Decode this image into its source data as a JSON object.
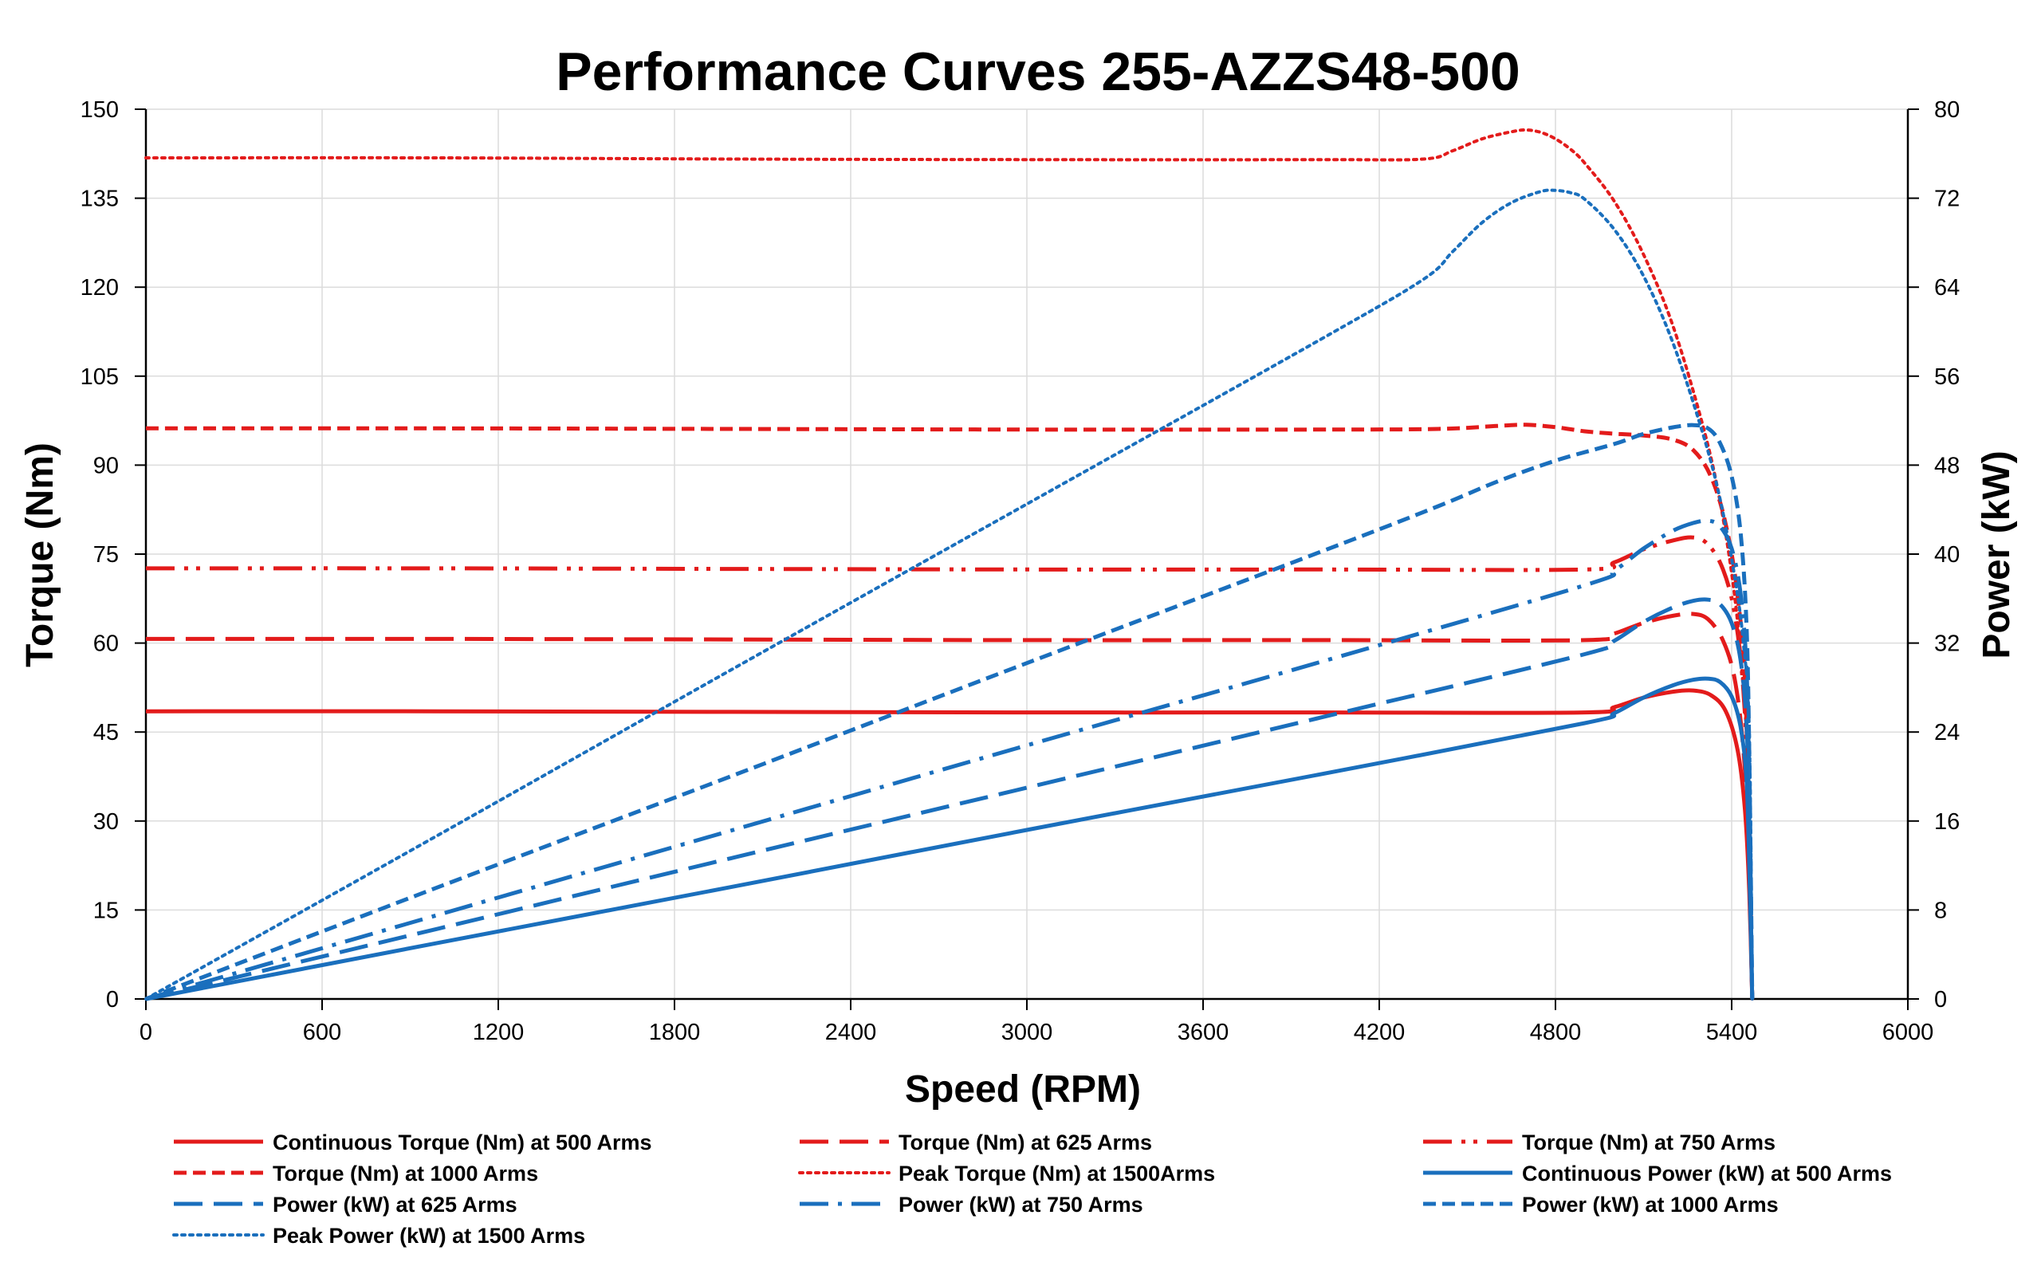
{
  "chart_data": {
    "type": "line",
    "title": "Performance Curves 255-AZZS48-500",
    "xlabel": "Speed (RPM)",
    "ylabel": "Torque (Nm)",
    "y2label": "Power (kW)",
    "xlim": [
      0,
      6000
    ],
    "ylim": [
      0,
      150
    ],
    "y2lim": [
      0,
      80
    ],
    "x_ticks": [
      "0",
      "600",
      "1200",
      "1800",
      "2400",
      "3000",
      "3600",
      "4200",
      "4800",
      "5400",
      "6000"
    ],
    "y_ticks": [
      "0",
      "15",
      "30",
      "45",
      "60",
      "75",
      "90",
      "105",
      "120",
      "135",
      "150"
    ],
    "y2_ticks": [
      "0",
      "8",
      "16",
      "24",
      "32",
      "40",
      "48",
      "56",
      "64",
      "72",
      "80"
    ],
    "grid": true,
    "legend_position": "bottom",
    "series": [
      {
        "name": "Continuous Torque (Nm) at 500 Arms",
        "axis": "left",
        "color": "#e31b1b",
        "dash": "solid",
        "x": [
          0,
          1000,
          2000,
          3000,
          4000,
          4900,
          5000,
          5100,
          5200,
          5270,
          5330,
          5380,
          5420,
          5445,
          5460,
          5470
        ],
        "y": [
          48.5,
          48.5,
          48.4,
          48.3,
          48.3,
          48.3,
          49.2,
          50.8,
          51.8,
          52.0,
          51.2,
          48.5,
          42,
          32,
          18,
          0
        ]
      },
      {
        "name": "Torque (Nm) at 625 Arms",
        "axis": "left",
        "color": "#e31b1b",
        "dash": "longdash",
        "x": [
          0,
          1000,
          2000,
          3000,
          4000,
          4900,
          5000,
          5100,
          5200,
          5270,
          5320,
          5370,
          5410,
          5440,
          5458,
          5470
        ],
        "y": [
          60.7,
          60.7,
          60.6,
          60.5,
          60.5,
          60.5,
          61.6,
          63.4,
          64.6,
          64.9,
          64.0,
          60.5,
          54,
          42,
          25,
          0
        ]
      },
      {
        "name": "Torque (Nm) at 750 Arms",
        "axis": "left",
        "color": "#e31b1b",
        "dash": "dashdotdot",
        "x": [
          0,
          1000,
          2000,
          3000,
          4000,
          4900,
          5000,
          5100,
          5200,
          5270,
          5320,
          5370,
          5410,
          5440,
          5458,
          5470
        ],
        "y": [
          72.6,
          72.6,
          72.5,
          72.4,
          72.4,
          72.4,
          73.6,
          75.8,
          77.3,
          77.8,
          76.6,
          72.5,
          65,
          52,
          32,
          0
        ]
      },
      {
        "name": "Torque (Nm) at 1000 Arms",
        "axis": "left",
        "color": "#e31b1b",
        "dash": "shortdash",
        "x": [
          0,
          1000,
          2000,
          3000,
          4000,
          4400,
          4600,
          4700,
          4800,
          4900,
          5000,
          5100,
          5200,
          5270,
          5330,
          5380,
          5420,
          5448,
          5470
        ],
        "y": [
          96.2,
          96.2,
          96.1,
          96.0,
          96.0,
          96.1,
          96.6,
          96.8,
          96.4,
          95.7,
          95.3,
          95.0,
          94.3,
          92.5,
          88,
          80,
          68,
          50,
          0
        ]
      },
      {
        "name": "Peak Torque (Nm) at 1500Arms",
        "axis": "left",
        "color": "#e31b1b",
        "dash": "dotted",
        "x": [
          0,
          1000,
          2000,
          3000,
          4000,
          4350,
          4450,
          4550,
          4650,
          4700,
          4750,
          4800,
          4850,
          4900,
          5000,
          5100,
          5200,
          5300,
          5360,
          5410,
          5440,
          5460,
          5470
        ],
        "y": [
          141.8,
          141.8,
          141.6,
          141.5,
          141.5,
          141.6,
          143.0,
          145.0,
          146.2,
          146.5,
          146.1,
          145.0,
          143.3,
          140.9,
          134.5,
          125.5,
          113.5,
          97,
          84,
          68,
          52,
          35,
          0
        ]
      },
      {
        "name": "Continuous Power (kW) at 500 Arms",
        "axis": "right",
        "color": "#1a6fbd",
        "dash": "solid",
        "x": [
          0,
          1000,
          2000,
          3000,
          4000,
          4900,
          5000,
          5100,
          5200,
          5270,
          5320,
          5360,
          5400,
          5430,
          5450,
          5460,
          5470
        ],
        "y": [
          0,
          5.07,
          10.1,
          15.2,
          20.2,
          24.8,
          25.7,
          27.1,
          28.2,
          28.7,
          28.8,
          28.5,
          27.2,
          24.5,
          20,
          12,
          0
        ]
      },
      {
        "name": "Power (kW) at 625 Arms",
        "axis": "right",
        "color": "#1a6fbd",
        "dash": "longdash",
        "x": [
          0,
          1000,
          2000,
          3000,
          4000,
          4900,
          5000,
          5100,
          5200,
          5270,
          5320,
          5360,
          5400,
          5430,
          5450,
          5460,
          5470
        ],
        "y": [
          0,
          6.35,
          12.7,
          19.0,
          25.3,
          31.0,
          32.2,
          33.9,
          35.2,
          35.8,
          35.9,
          35.5,
          33.8,
          30.5,
          25,
          16,
          0
        ]
      },
      {
        "name": "Power (kW) at 750 Arms",
        "axis": "right",
        "color": "#1a6fbd",
        "dash": "dashdot",
        "x": [
          0,
          1000,
          2000,
          3000,
          4000,
          4900,
          5000,
          5100,
          5200,
          5270,
          5320,
          5360,
          5400,
          5430,
          5450,
          5460,
          5470
        ],
        "y": [
          0,
          7.6,
          15.2,
          22.8,
          30.3,
          37.2,
          38.5,
          40.5,
          42.1,
          42.8,
          43.0,
          42.5,
          40.5,
          36.5,
          30,
          19,
          0
        ]
      },
      {
        "name": "Power (kW) at 1000 Arms",
        "axis": "right",
        "color": "#1a6fbd",
        "dash": "shortdash",
        "x": [
          0,
          1000,
          2000,
          3000,
          4000,
          4400,
          4600,
          4800,
          5000,
          5100,
          5200,
          5270,
          5320,
          5360,
          5400,
          5430,
          5450,
          5460,
          5470
        ],
        "y": [
          0,
          10.1,
          20.1,
          30.2,
          40.2,
          44.3,
          46.5,
          48.4,
          49.9,
          50.8,
          51.4,
          51.6,
          51.3,
          50,
          47,
          42,
          34,
          22,
          0
        ]
      },
      {
        "name": "Peak Power (kW) at 1500 Arms",
        "axis": "right",
        "color": "#1a6fbd",
        "dash": "dotted",
        "x": [
          0,
          1000,
          2000,
          3000,
          4000,
          4350,
          4450,
          4550,
          4650,
          4750,
          4800,
          4850,
          4900,
          5000,
          5100,
          5200,
          5300,
          5360,
          5410,
          5440,
          5460,
          5470
        ],
        "y": [
          0,
          14.8,
          29.7,
          44.5,
          59.3,
          64.7,
          67.2,
          69.8,
          71.6,
          72.6,
          72.7,
          72.5,
          71.9,
          69.2,
          65.0,
          59.0,
          51.0,
          45,
          38,
          32,
          24,
          0
        ]
      }
    ]
  }
}
